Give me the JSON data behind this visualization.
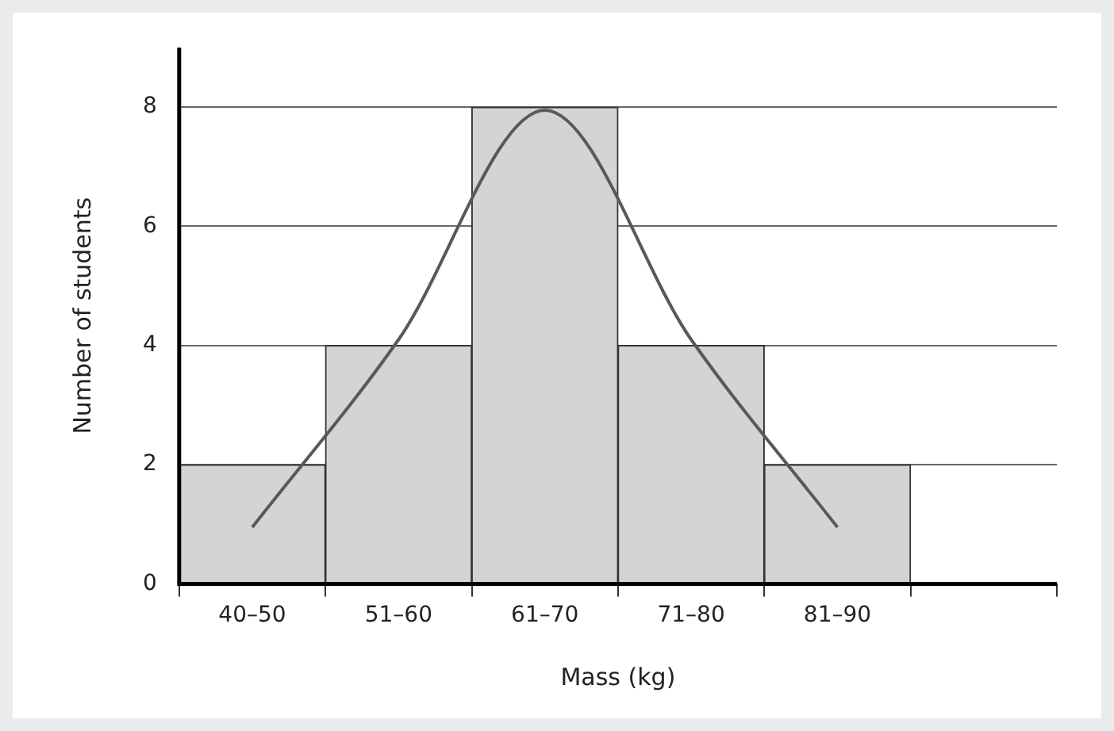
{
  "chart_data": {
    "type": "bar",
    "xlabel": "Mass (kg)",
    "ylabel": "Number of students",
    "categories": [
      "40–50",
      "51–60",
      "61–70",
      "71–80",
      "81–90",
      null
    ],
    "series": [
      {
        "color": "#d4d4d4",
        "values": [
          2,
          4,
          8,
          4,
          2,
          null
        ]
      },
      {
        "type": "line",
        "color": "#595959",
        "values": [
          0.95,
          4.1,
          7.95,
          4.1,
          0.95,
          null
        ]
      }
    ],
    "ylim": [
      0,
      9
    ],
    "yticks": [
      0,
      2,
      4,
      6,
      8
    ],
    "grid": "y",
    "legend": false,
    "marker": "none",
    "line_style": "solid"
  }
}
